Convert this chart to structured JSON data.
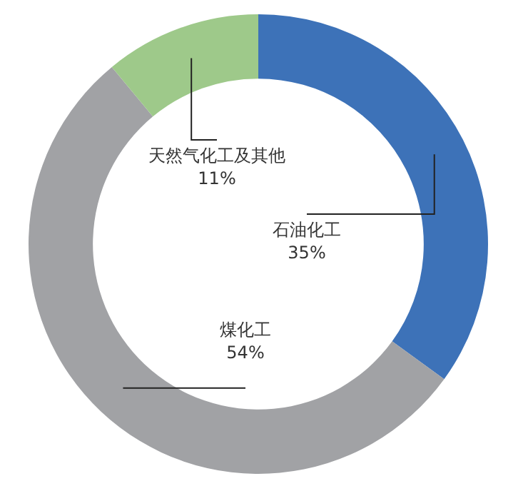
{
  "chart_data": {
    "type": "donut",
    "categories": [
      "石油化工",
      "煤化工",
      "天然气化工及其他"
    ],
    "values": [
      35,
      54,
      11
    ],
    "value_labels": [
      "35%",
      "54%",
      "11%"
    ],
    "colors": [
      "#3d72b8",
      "#a1a2a5",
      "#9ec98a"
    ],
    "legend": false
  }
}
